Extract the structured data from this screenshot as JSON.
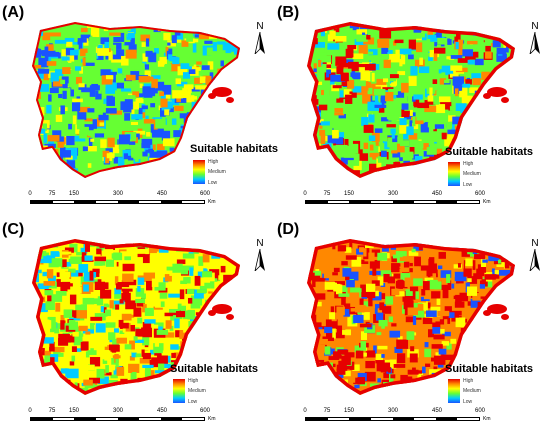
{
  "panels": [
    {
      "label": "(A)",
      "dominant": "low"
    },
    {
      "label": "(B)",
      "dominant": "mixed-low"
    },
    {
      "label": "(C)",
      "dominant": "mixed-high"
    },
    {
      "label": "(D)",
      "dominant": "high"
    }
  ],
  "north_arrow": {
    "letter": "N"
  },
  "legend": {
    "title": "Suitable habitats",
    "high": "High",
    "medium": "Medium",
    "low": "Low",
    "colors": [
      "#e60000",
      "#ff8800",
      "#ffff00",
      "#66ff33",
      "#00ccff",
      "#1a53ff"
    ]
  },
  "scale": {
    "ticks": [
      "0",
      "75",
      "150",
      "300",
      "450",
      "600"
    ],
    "unit": "Km"
  },
  "colors": {
    "high": "#e60000",
    "mid_high": "#ff8800",
    "medium": "#ffff00",
    "mid_low": "#66ff33",
    "low_green": "#00ccff",
    "low": "#1a53ff"
  }
}
